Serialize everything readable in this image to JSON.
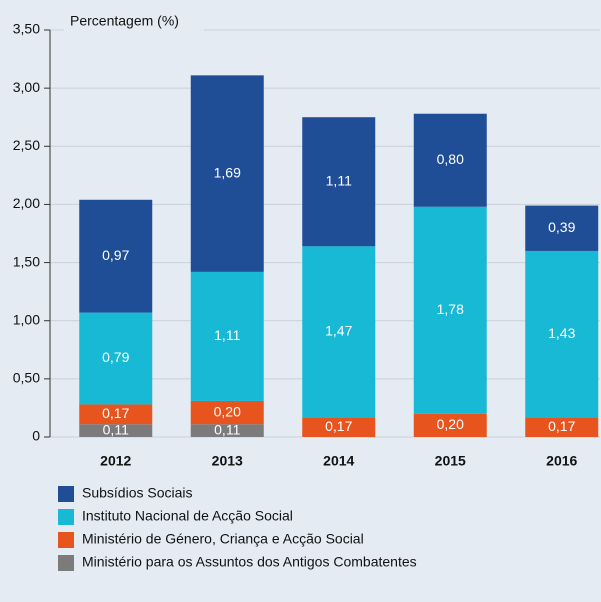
{
  "chart_data": {
    "type": "stacked-bar",
    "y_label": "Percentagem (%)",
    "categories": [
      "2012",
      "2013",
      "2014",
      "2015",
      "2016"
    ],
    "series": [
      {
        "name": "Subsídios Sociais",
        "color": "#1f4e96",
        "values": [
          0.97,
          1.69,
          1.11,
          0.8,
          0.39
        ],
        "value_labels": [
          "0,97",
          "1,69",
          "1,11",
          "0,80",
          "0,39"
        ]
      },
      {
        "name": "Instituto Nacional de Acção Social",
        "color": "#18b9d5",
        "values": [
          0.79,
          1.11,
          1.47,
          1.78,
          1.43
        ],
        "value_labels": [
          "0,79",
          "1,11",
          "1,47",
          "1,78",
          "1,43"
        ]
      },
      {
        "name": "Ministério de Género, Criança e Acção Social",
        "color": "#e8541e",
        "values": [
          0.17,
          0.2,
          0.17,
          0.2,
          0.17
        ],
        "value_labels": [
          "0,17",
          "0,20",
          "0,17",
          "0,20",
          "0,17"
        ]
      },
      {
        "name": "Ministério para os Assuntos dos Antigos Combatentes",
        "color": "#7b7b7b",
        "values": [
          0.11,
          0.11,
          null,
          null,
          null
        ],
        "value_labels": [
          "0,11",
          "0,11",
          null,
          null,
          null
        ]
      }
    ],
    "ylim": [
      0,
      3.5
    ],
    "yticks": [
      0,
      {
        "value": 0.5,
        "label": "0,50"
      },
      {
        "value": 1,
        "label": "1,00"
      },
      {
        "value": 1.5,
        "label": "1,50"
      },
      {
        "value": 2,
        "label": "2,00"
      },
      {
        "value": 2.5,
        "label": "2,50"
      },
      {
        "value": 3,
        "label": "3,00"
      },
      {
        "value": 3.5,
        "label": "3,50"
      }
    ],
    "grid": true
  }
}
